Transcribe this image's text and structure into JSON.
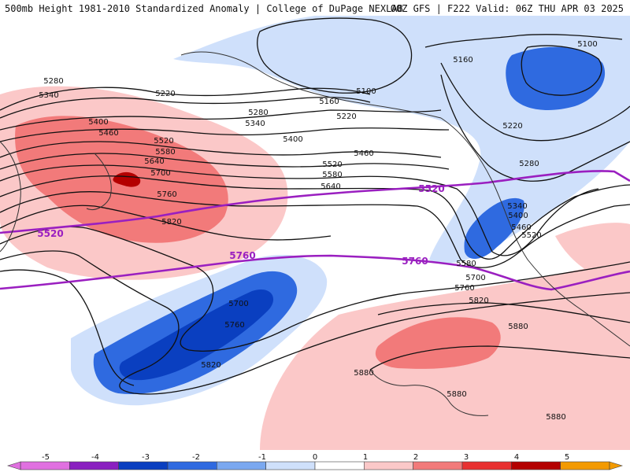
{
  "header": {
    "title_left": "500mb Height 1981-2010 Standardized Anomaly | College of DuPage NEXLAB",
    "title_right": "00Z GFS | F222 Valid: 06Z THU APR 03 2025"
  },
  "contour_labels": [
    "5100",
    "5160",
    "5220",
    "5280",
    "5340",
    "5400",
    "5460",
    "5520",
    "5580",
    "5640",
    "5700",
    "5760",
    "5820",
    "5880"
  ],
  "highlight_labels": [
    "5520",
    "5760"
  ],
  "colorbar": {
    "ticks": [
      "-5",
      "-4",
      "-3",
      "-2",
      "-1",
      "0",
      "1",
      "2",
      "3",
      "4",
      "5"
    ],
    "colors": [
      "#e070e0",
      "#8a1fc0",
      "#0a3fc0",
      "#2f6ae0",
      "#7aa8f0",
      "#cfe0fb",
      "#ffffff",
      "#fbc8c8",
      "#f27a7a",
      "#e83030",
      "#b40000",
      "#f39a00"
    ]
  },
  "colors": {
    "contour": "#111111",
    "highlight": "#9a1fc0",
    "coast": "#333333"
  }
}
